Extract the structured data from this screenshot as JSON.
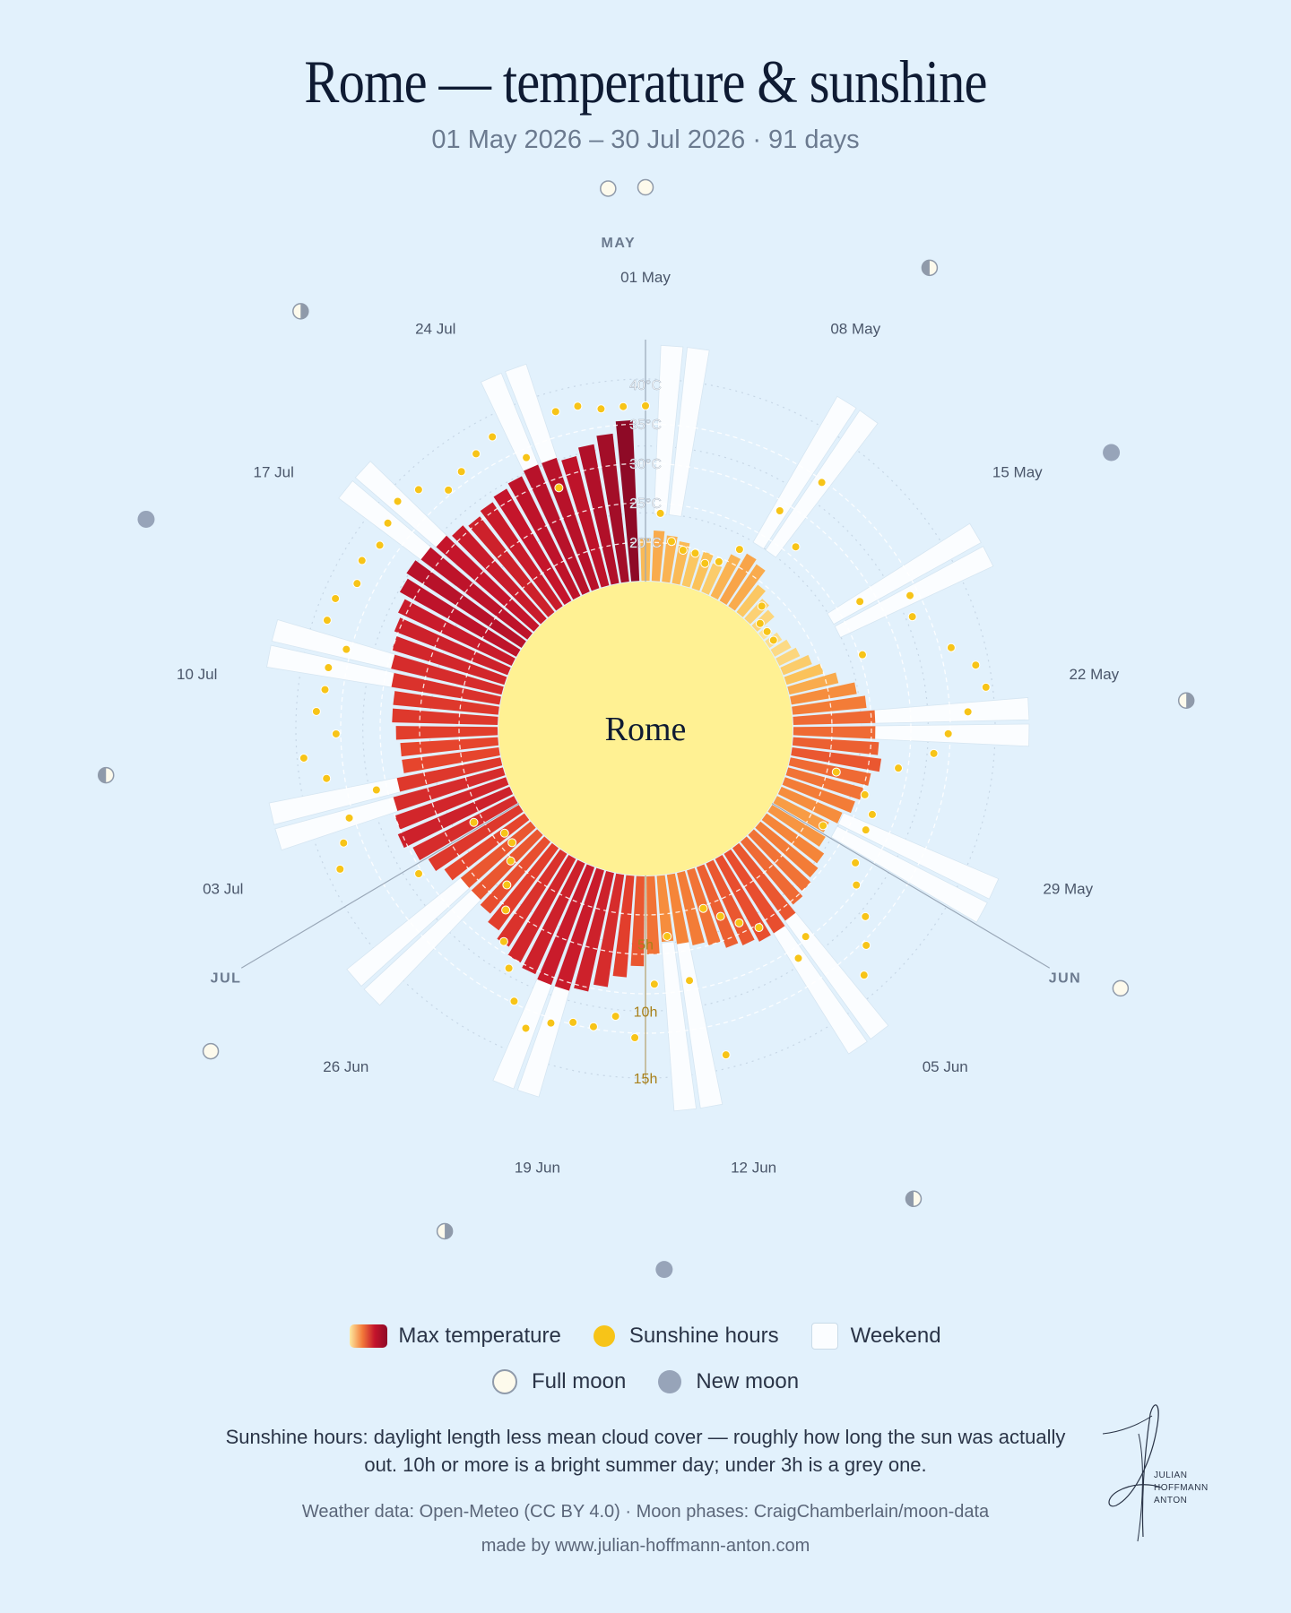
{
  "title": "Rome — temperature & sunshine",
  "subtitle": "01 May 2026 – 30 Jul 2026 · 91 days",
  "center_label": "Rome",
  "chart_data": {
    "type": "radial-bar",
    "start_date": "2026-05-01",
    "end_date": "2026-07-30",
    "dates": [
      "01 May",
      "02 May",
      "03 May",
      "04 May",
      "05 May",
      "06 May",
      "07 May",
      "08 May",
      "09 May",
      "10 May",
      "11 May",
      "12 May",
      "13 May",
      "14 May",
      "15 May",
      "16 May",
      "17 May",
      "18 May",
      "19 May",
      "20 May",
      "21 May",
      "22 May",
      "23 May",
      "24 May",
      "25 May",
      "26 May",
      "27 May",
      "28 May",
      "29 May",
      "30 May",
      "31 May",
      "01 Jun",
      "02 Jun",
      "03 Jun",
      "04 Jun",
      "05 Jun",
      "06 Jun",
      "07 Jun",
      "08 Jun",
      "09 Jun",
      "10 Jun",
      "11 Jun",
      "12 Jun",
      "13 Jun",
      "14 Jun",
      "15 Jun",
      "16 Jun",
      "17 Jun",
      "18 Jun",
      "19 Jun",
      "20 Jun",
      "21 Jun",
      "22 Jun",
      "23 Jun",
      "24 Jun",
      "25 Jun",
      "26 Jun",
      "27 Jun",
      "28 Jun",
      "29 Jun",
      "30 Jun",
      "01 Jul",
      "02 Jul",
      "03 Jul",
      "04 Jul",
      "05 Jul",
      "06 Jul",
      "07 Jul",
      "08 Jul",
      "09 Jul",
      "10 Jul",
      "11 Jul",
      "12 Jul",
      "13 Jul",
      "14 Jul",
      "15 Jul",
      "16 Jul",
      "17 Jul",
      "18 Jul",
      "19 Jul",
      "20 Jul",
      "21 Jul",
      "22 Jul",
      "23 Jul",
      "24 Jul",
      "25 Jul",
      "26 Jul",
      "27 Jul",
      "28 Jul",
      "29 Jul",
      "30 Jul"
    ],
    "max_temperature_c": [
      20.5,
      21.5,
      21.0,
      20.5,
      19.5,
      20.0,
      19.0,
      21.0,
      22.0,
      21.5,
      19.5,
      18.5,
      18.0,
      16.5,
      17.0,
      17.5,
      18.0,
      19.0,
      20.0,
      21.5,
      23.5,
      24.5,
      25.5,
      25.5,
      26.0,
      26.5,
      25.5,
      25.0,
      24.5,
      23.5,
      22.5,
      23.0,
      24.0,
      24.5,
      25.0,
      25.5,
      26.5,
      27.0,
      27.0,
      26.5,
      26.0,
      25.0,
      24.5,
      24.0,
      23.5,
      25.0,
      26.5,
      28.0,
      29.5,
      30.5,
      31.0,
      31.0,
      30.5,
      30.0,
      29.0,
      28.0,
      27.0,
      26.5,
      26.5,
      27.5,
      28.5,
      29.5,
      30.5,
      30.0,
      29.5,
      28.5,
      27.5,
      27.5,
      28.0,
      28.5,
      28.5,
      29.0,
      29.5,
      30.0,
      30.5,
      31.0,
      32.0,
      32.5,
      32.0,
      31.5,
      31.0,
      30.5,
      31.0,
      31.5,
      32.0,
      32.5,
      32.5,
      32.0,
      33.0,
      34.0,
      35.5
    ],
    "sunshine_hours": [
      13.0,
      5.0,
      3.0,
      2.5,
      2.5,
      2.0,
      2.5,
      4.0,
      8.0,
      11.5,
      6.5,
      1.5,
      0.5,
      0.5,
      0.5,
      7.5,
      11.0,
      10.5,
      6.0,
      12.5,
      14.0,
      14.5,
      13.0,
      11.5,
      10.5,
      8.0,
      3.5,
      6.0,
      7.0,
      7.0,
      4.0,
      7.5,
      8.5,
      10.5,
      12.0,
      13.5,
      8.5,
      9.5,
      6.0,
      5.0,
      4.0,
      3.0,
      14.0,
      8.0,
      4.5,
      8.0,
      12.0,
      10.5,
      11.5,
      11.5,
      12.0,
      13.0,
      11.5,
      9.5,
      8.0,
      6.0,
      4.5,
      3.0,
      2.0,
      2.0,
      9.0,
      3.5,
      14.0,
      13.0,
      12.0,
      9.5,
      13.0,
      14.5,
      12.0,
      13.5,
      13.0,
      13.0,
      12.0,
      14.0,
      14.0,
      13.0,
      13.5,
      13.0,
      13.5,
      14.0,
      13.5,
      12.0,
      12.5,
      13.0,
      13.5,
      11.0,
      8.0,
      13.5,
      13.5,
      13.0,
      13.0
    ],
    "weekend_dates": [
      "02 May",
      "03 May",
      "09 May",
      "10 May",
      "16 May",
      "17 May",
      "23 May",
      "24 May",
      "30 May",
      "31 May",
      "06 Jun",
      "07 Jun",
      "13 Jun",
      "14 Jun",
      "20 Jun",
      "21 Jun",
      "27 Jun",
      "28 Jun",
      "04 Jul",
      "05 Jul",
      "11 Jul",
      "12 Jul",
      "18 Jul",
      "19 Jul",
      "25 Jul",
      "26 Jul"
    ],
    "moon_phases": [
      {
        "date": "01 May",
        "phase": "full"
      },
      {
        "date": "09 May",
        "phase": "last quarter"
      },
      {
        "date": "16 May",
        "phase": "new"
      },
      {
        "date": "23 May",
        "phase": "first quarter"
      },
      {
        "date": "31 May",
        "phase": "full"
      },
      {
        "date": "08 Jun",
        "phase": "last quarter"
      },
      {
        "date": "15 Jun",
        "phase": "new"
      },
      {
        "date": "21 Jun",
        "phase": "first quarter"
      },
      {
        "date": "29 Jun",
        "phase": "full"
      },
      {
        "date": "07 Jul",
        "phase": "last quarter"
      },
      {
        "date": "14 Jul",
        "phase": "new"
      },
      {
        "date": "21 Jul",
        "phase": "first quarter"
      },
      {
        "date": "30 Jul",
        "phase": "full"
      }
    ],
    "temperature_ticks": [
      "20°C",
      "25°C",
      "30°C",
      "35°C",
      "40°C"
    ],
    "sunshine_ticks": [
      "5h",
      "10h",
      "15h"
    ],
    "month_labels": [
      "MAY",
      "JUN",
      "JUL"
    ],
    "date_labels": [
      "01 May",
      "08 May",
      "15 May",
      "22 May",
      "29 May",
      "05 Jun",
      "12 Jun",
      "19 Jun",
      "26 Jun",
      "03 Jul",
      "10 Jul",
      "17 Jul",
      "24 Jul"
    ],
    "temperature_colors": [
      "#fde9a0",
      "#fbc35b",
      "#f6893a",
      "#e5412c",
      "#c4142b",
      "#8e0a26"
    ],
    "sunshine_color": "#f7c418",
    "weekend_color": "#fbfdff",
    "sun_color": "#fff193"
  },
  "legend": {
    "max_temperature": "Max temperature",
    "sunshine_hours": "Sunshine hours",
    "weekend": "Weekend",
    "full_moon": "Full moon",
    "new_moon": "New moon"
  },
  "note": "Sunshine hours: daylight length less mean cloud cover — roughly how long the sun was actually out. 10h or more is a bright summer day; under 3h is a grey one.",
  "credits": {
    "sources": "Weather data: Open-Meteo (CC BY 4.0) · Moon phases: CraigChamberlain/moon-data",
    "made_by": "made by www.julian-hoffmann-anton.com"
  },
  "signature": {
    "line1": "JULIAN",
    "line2": "HOFFMANN",
    "line3": "ANTON"
  }
}
